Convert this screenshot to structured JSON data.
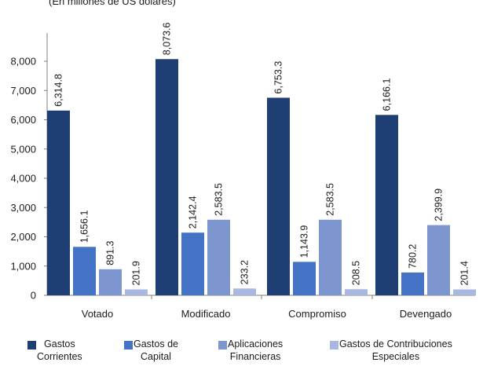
{
  "subtitle": "(En millones de US dólares)",
  "chart_data": {
    "type": "bar",
    "title": "",
    "xlabel": "",
    "ylabel": "",
    "categories": [
      "Votado",
      "Modificado",
      "Compromiso",
      "Devengado"
    ],
    "ylim": [
      0,
      8000
    ],
    "yticks": [
      0,
      1000,
      2000,
      3000,
      4000,
      5000,
      6000,
      7000,
      8000
    ],
    "ytick_labels": [
      "0",
      "1,000",
      "2,000",
      "3,000",
      "4,000",
      "5,000",
      "6,000",
      "7,000",
      "8,000"
    ],
    "grid": false,
    "legend_position": "bottom",
    "series": [
      {
        "name": "Gastos Corrientes",
        "legend_lines": [
          "Gastos",
          "Corrientes"
        ],
        "color": "#1f3e74",
        "values": [
          6314.8,
          8073.6,
          6753.3,
          6166.1
        ],
        "labels": [
          "6,314.8",
          "8,073.6",
          "6,753.3",
          "6,166.1"
        ]
      },
      {
        "name": "Gastos de Capital",
        "legend_lines": [
          "Gastos de",
          "Capital"
        ],
        "color": "#4472c4",
        "values": [
          1656.1,
          2142.4,
          1143.9,
          780.2
        ],
        "labels": [
          "1,656.1",
          "2,142.4",
          "1,143.9",
          "780.2"
        ]
      },
      {
        "name": "Aplicaciones Financieras",
        "legend_lines": [
          "Aplicaciones",
          "Financieras"
        ],
        "color": "#7e96d0",
        "values": [
          891.3,
          2583.5,
          2583.5,
          2399.9
        ],
        "labels": [
          "891.3",
          "2,583.5",
          "2,583.5",
          "2,399.9"
        ]
      },
      {
        "name": "Gastos de Contribuciones Especiales",
        "legend_lines": [
          "Gastos de Contribuciones",
          "Especiales"
        ],
        "color": "#a9b8e0",
        "values": [
          201.9,
          233.2,
          208.5,
          201.4
        ],
        "labels": [
          "201.9",
          "233.2",
          "208.5",
          "201.4"
        ]
      }
    ]
  }
}
